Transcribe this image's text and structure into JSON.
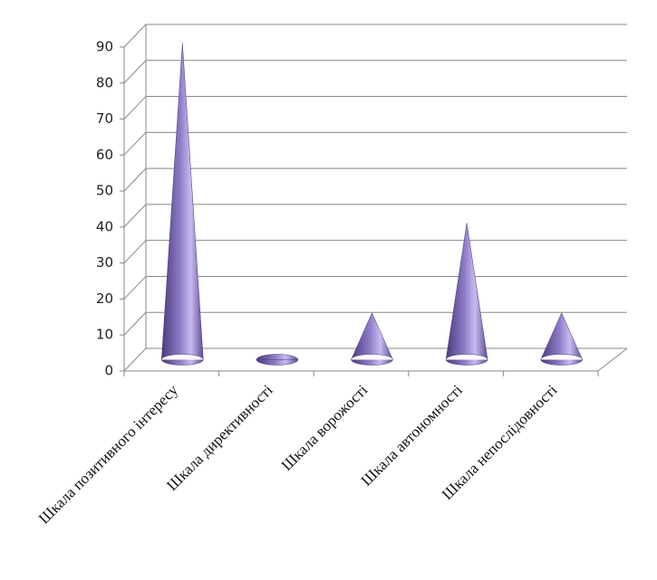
{
  "chart_data": {
    "type": "cone",
    "categories": [
      "Шкала позитивного інтересу",
      "Шкала директивності",
      "Шкала ворожості",
      "Шкала автономності",
      "Шкала непослідовності"
    ],
    "values": [
      88,
      0,
      13,
      38,
      13
    ],
    "color": "#8a74c4",
    "ylim": [
      0,
      90
    ],
    "yticks": [
      0,
      10,
      20,
      30,
      40,
      50,
      60,
      70,
      80,
      90
    ],
    "grid": true
  }
}
